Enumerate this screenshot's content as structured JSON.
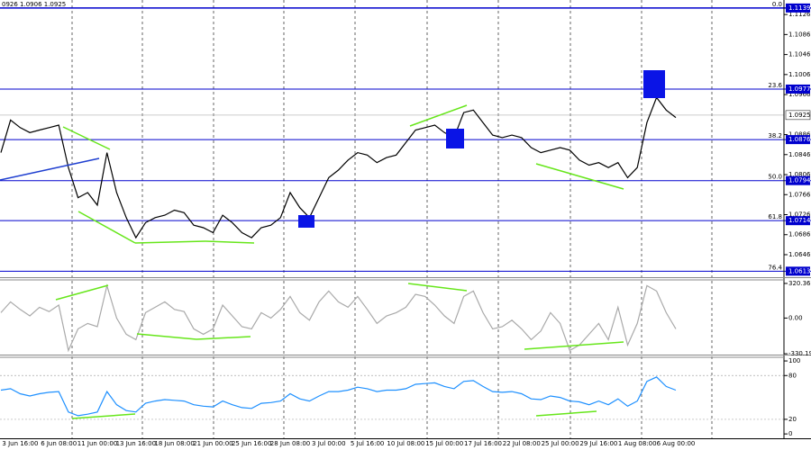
{
  "header": "0926 1.0906 1.0925",
  "chart_data": [
    {
      "type": "line",
      "color": "#000000",
      "categories": [
        null,
        null,
        "3 Jun 16:00",
        null,
        null,
        null,
        "6 Jun 08:00",
        null,
        null,
        null,
        "11 Jun 00:00",
        null,
        null,
        null,
        "13 Jun 16:00",
        null,
        null,
        null,
        "18 Jun 08:00",
        null,
        null,
        null,
        "21 Jun 00:00",
        null,
        null,
        null,
        "25 Jun 16:00",
        null,
        null,
        null,
        "28 Jun 08:00",
        null,
        null,
        null,
        "3 Jul 00:00",
        null,
        null,
        null,
        "5 Jul 16:00",
        null,
        null,
        null,
        "10 Jul 08:00",
        null,
        null,
        null,
        "15 Jul 00:00",
        null,
        null,
        null,
        "17 Jul 16:00",
        null,
        null,
        null,
        "22 Jul 08:00",
        null,
        null,
        null,
        "25 Jul 00:00",
        null,
        null,
        null,
        "29 Jul 16:00",
        null,
        null,
        null,
        "1 Aug 08:00",
        null,
        null,
        null,
        "6 Aug 00:00"
      ],
      "values": [
        1.085,
        1.0915,
        1.09,
        1.089,
        1.0895,
        1.09,
        1.0905,
        1.082,
        1.076,
        1.077,
        1.0745,
        1.085,
        1.077,
        1.072,
        1.068,
        1.071,
        1.072,
        1.0725,
        1.0735,
        1.073,
        1.0705,
        1.07,
        1.069,
        1.0725,
        1.071,
        1.069,
        1.068,
        1.07,
        1.0705,
        1.072,
        1.077,
        1.074,
        1.072,
        1.076,
        1.08,
        1.0815,
        1.0835,
        1.085,
        1.0845,
        1.083,
        1.084,
        1.0845,
        1.087,
        1.0895,
        1.09,
        1.0905,
        1.089,
        1.088,
        1.093,
        1.0935,
        1.091,
        1.0885,
        1.088,
        1.0885,
        1.088,
        1.086,
        1.085,
        1.0855,
        1.086,
        1.0855,
        1.0835,
        1.0825,
        1.083,
        1.082,
        1.083,
        1.08,
        1.082,
        1.091,
        1.096,
        1.0935,
        1.092
      ],
      "ylim": [
        1.0601,
        1.1155
      ],
      "yticks": [
        1.1126,
        1.1086,
        1.1046,
        1.1006,
        1.0966,
        1.0886,
        1.0846,
        1.0806,
        1.0766,
        1.0726,
        1.0686,
        1.0646
      ],
      "current_price": 1.0925,
      "fib_color": "#0000cd",
      "fib_levels": [
        {
          "label": "0.0",
          "value": 1.1139
        },
        {
          "label": "23.6",
          "value": 1.0977
        },
        {
          "label": "38.2",
          "value": 1.0876
        },
        {
          "label": "50.0",
          "value": 1.0794
        },
        {
          "label": "61.8",
          "value": 1.0714
        },
        {
          "label": "76.4",
          "value": 1.0613
        }
      ]
    },
    {
      "type": "line",
      "color": "#a9a9a9",
      "values": [
        50,
        150,
        80,
        20,
        100,
        60,
        120,
        -300,
        -100,
        -50,
        -80,
        300,
        0,
        -150,
        -200,
        50,
        100,
        150,
        80,
        60,
        -100,
        -150,
        -100,
        120,
        20,
        -80,
        -100,
        50,
        0,
        80,
        200,
        50,
        -20,
        150,
        250,
        150,
        100,
        200,
        80,
        -50,
        20,
        50,
        100,
        220,
        200,
        120,
        20,
        -50,
        200,
        250,
        50,
        -100,
        -80,
        -20,
        -100,
        -200,
        -120,
        50,
        -50,
        -300,
        -250,
        -150,
        -50,
        -200,
        100,
        -250,
        -50,
        300,
        250,
        50,
        -100
      ],
      "ylim": [
        -338,
        353
      ],
      "yticks": [
        320.3615,
        {
          "value": 0,
          "label": "0.00"
        },
        -330.193
      ]
    },
    {
      "type": "line",
      "color": "#1e90ff",
      "values": [
        60,
        62,
        55,
        52,
        55,
        57,
        58,
        30,
        25,
        27,
        30,
        58,
        40,
        32,
        30,
        42,
        45,
        47,
        46,
        45,
        40,
        38,
        37,
        45,
        40,
        36,
        35,
        42,
        43,
        45,
        55,
        48,
        45,
        52,
        58,
        58,
        60,
        64,
        62,
        58,
        60,
        60,
        62,
        68,
        69,
        70,
        65,
        62,
        72,
        73,
        65,
        58,
        57,
        58,
        55,
        48,
        47,
        52,
        50,
        45,
        44,
        40,
        45,
        40,
        48,
        38,
        45,
        72,
        78,
        65,
        60
      ],
      "ylim": [
        -6,
        105
      ],
      "yticks": [
        100,
        80,
        20,
        0
      ]
    }
  ]
}
